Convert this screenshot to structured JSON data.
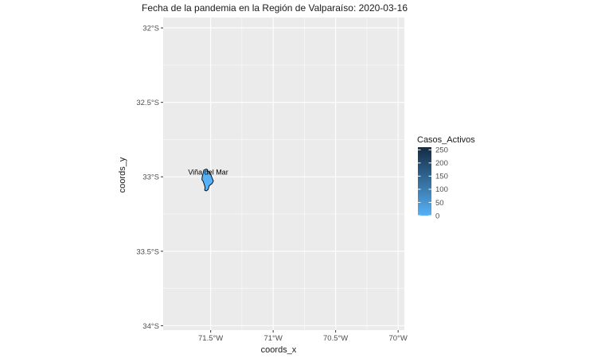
{
  "chart_data": {
    "type": "map",
    "title": "Fecha de la pandemia en la Región de Valparaíso: 2020-03-16",
    "xlabel": "coords_x",
    "ylabel": "coords_y",
    "xlim": [
      -71.88,
      -69.95
    ],
    "ylim": [
      -34.03,
      -31.93
    ],
    "x_ticks": [
      {
        "value": -71.5,
        "label": "71.5°W"
      },
      {
        "value": -71.0,
        "label": "71°W"
      },
      {
        "value": -70.5,
        "label": "70.5°W"
      },
      {
        "value": -70.0,
        "label": "70°W"
      }
    ],
    "y_ticks": [
      {
        "value": -32.0,
        "label": "32°S"
      },
      {
        "value": -32.5,
        "label": "32.5°S"
      },
      {
        "value": -33.0,
        "label": "33°S"
      },
      {
        "value": -33.5,
        "label": "33.5°S"
      },
      {
        "value": -34.0,
        "label": "34°S"
      }
    ],
    "grid": true,
    "panel_color": "#ebebeb",
    "regions": [
      {
        "name": "Viña del Mar",
        "casos_activos": 0,
        "fill": "#56b1f7",
        "label_at": [
          -71.52,
          -32.985
        ],
        "outline": [
          [
            -71.555,
            -32.955
          ],
          [
            -71.535,
            -32.948
          ],
          [
            -71.525,
            -32.952
          ],
          [
            -71.522,
            -32.962
          ],
          [
            -71.512,
            -32.966
          ],
          [
            -71.502,
            -32.978
          ],
          [
            -71.492,
            -33.0
          ],
          [
            -71.485,
            -33.015
          ],
          [
            -71.478,
            -33.028
          ],
          [
            -71.488,
            -33.045
          ],
          [
            -71.5,
            -33.052
          ],
          [
            -71.512,
            -33.06
          ],
          [
            -71.52,
            -33.085
          ],
          [
            -71.535,
            -33.095
          ],
          [
            -71.548,
            -33.09
          ],
          [
            -71.545,
            -33.07
          ],
          [
            -71.552,
            -33.05
          ],
          [
            -71.56,
            -33.03
          ],
          [
            -71.57,
            -33.02
          ],
          [
            -71.568,
            -33.0
          ],
          [
            -71.56,
            -32.975
          ],
          [
            -71.555,
            -32.955
          ]
        ]
      }
    ],
    "legend": {
      "title": "Casos_Activos",
      "position": "right",
      "range": [
        0,
        260
      ],
      "low_color": "#56b1f7",
      "high_color": "#132b43",
      "breaks": [
        {
          "value": 0,
          "label": "0"
        },
        {
          "value": 50,
          "label": "50"
        },
        {
          "value": 100,
          "label": "100"
        },
        {
          "value": 150,
          "label": "150"
        },
        {
          "value": 200,
          "label": "200"
        },
        {
          "value": 250,
          "label": "250"
        }
      ]
    }
  }
}
